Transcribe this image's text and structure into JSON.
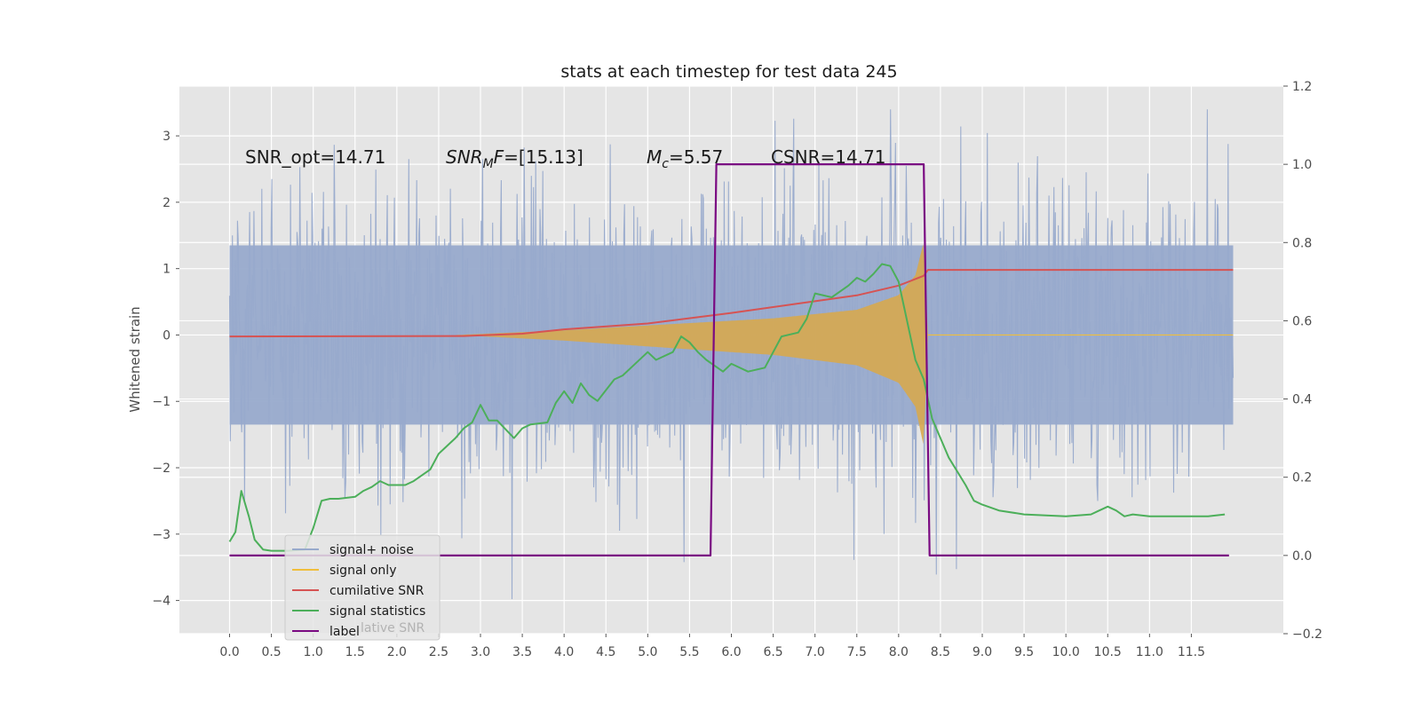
{
  "chart_data": {
    "type": "line",
    "title": "stats at each timestep for test data 245",
    "ylabel": "Whitened strain",
    "x_ticks": [
      "0.0",
      "0.5",
      "1.0",
      "1.5",
      "2.0",
      "2.5",
      "3.0",
      "3.5",
      "4.0",
      "4.5",
      "5.0",
      "5.5",
      "6.0",
      "6.5",
      "7.0",
      "7.5",
      "8.0",
      "8.5",
      "9.0",
      "9.5",
      "10.0",
      "10.5",
      "11.0",
      "11.5"
    ],
    "y_ticks_left": [
      3,
      2,
      1,
      0,
      -1,
      -2,
      -3,
      -4
    ],
    "y_ticks_right": [
      "1.2",
      "1.0",
      "0.8",
      "0.6",
      "0.4",
      "0.2",
      "0.0",
      "−0.2"
    ],
    "xlim": [
      -0.6,
      12.6
    ],
    "ylim_left": [
      -4.5,
      3.75
    ],
    "ylim_right": [
      -0.2,
      1.2
    ],
    "grid": true,
    "legend_position": "lower-left",
    "colors": {
      "background": "#e5e5e5",
      "noise": "#98aacc",
      "signal": "#f0be3c",
      "signal_fill": "#d7a84f",
      "cumsnr": "#d65353",
      "stats": "#4caf5a",
      "label": "#7a0a82"
    },
    "annotations": {
      "snr_opt": "SNR_opt=14.71",
      "snr_mf_main": "SNR",
      "snr_mf_sub": "M",
      "snr_mf_rest": "F=[15.13]",
      "mc_main": "M",
      "mc_sub": "c",
      "mc_rest": "=5.57",
      "csnr": "CSNR=14.71"
    },
    "legend": {
      "items": [
        "signal+ noise",
        "signal only",
        "cumilative SNR",
        "signal statistics",
        "label"
      ],
      "ghost_text": "lative SNR"
    },
    "series": [
      {
        "name": "signal+ noise",
        "axis": "left",
        "band": {
          "x_range": [
            0.0,
            12.0
          ],
          "core_amplitude": 1.0,
          "peak_range": [
            -4.1,
            3.4
          ]
        }
      },
      {
        "name": "signal only",
        "axis": "left",
        "x_range": [
          2.7,
          8.35
        ],
        "amplitude_envelope": [
          [
            2.7,
            0.0
          ],
          [
            4.0,
            0.07
          ],
          [
            5.5,
            0.18
          ],
          [
            6.5,
            0.25
          ],
          [
            7.5,
            0.38
          ],
          [
            8.0,
            0.6
          ],
          [
            8.2,
            0.9
          ],
          [
            8.3,
            1.4
          ],
          [
            8.35,
            0.0
          ]
        ]
      },
      {
        "name": "cumilative SNR",
        "axis": "right",
        "x": [
          0.0,
          2.8,
          3.5,
          4.0,
          5.0,
          6.0,
          7.0,
          7.5,
          8.0,
          8.3,
          8.35,
          12.0
        ],
        "values": [
          0.56,
          0.561,
          0.567,
          0.578,
          0.593,
          0.62,
          0.65,
          0.665,
          0.69,
          0.715,
          0.73,
          0.73
        ]
      },
      {
        "name": "signal statistics",
        "axis": "right",
        "x": [
          0.0,
          0.07,
          0.14,
          0.23,
          0.3,
          0.4,
          0.5,
          0.7,
          0.9,
          1.0,
          1.1,
          1.2,
          1.3,
          1.5,
          1.6,
          1.7,
          1.8,
          1.9,
          2.1,
          2.2,
          2.4,
          2.5,
          2.6,
          2.7,
          2.8,
          2.9,
          3.0,
          3.1,
          3.2,
          3.4,
          3.5,
          3.6,
          3.8,
          3.9,
          4.0,
          4.1,
          4.2,
          4.3,
          4.4,
          4.6,
          4.7,
          4.8,
          5.0,
          5.1,
          5.3,
          5.4,
          5.5,
          5.6,
          5.7,
          5.9,
          6.0,
          6.2,
          6.4,
          6.6,
          6.8,
          6.9,
          7.0,
          7.2,
          7.4,
          7.5,
          7.6,
          7.7,
          7.8,
          7.9,
          8.0,
          8.1,
          8.2,
          8.3,
          8.4,
          8.6,
          8.8,
          8.9,
          9.0,
          9.2,
          9.5,
          10.0,
          10.3,
          10.4,
          10.5,
          10.6,
          10.7,
          10.8,
          11.0,
          11.5,
          11.6,
          11.7,
          11.9
        ],
        "values": [
          0.035,
          0.06,
          0.165,
          0.1,
          0.04,
          0.015,
          0.012,
          0.012,
          0.015,
          0.07,
          0.14,
          0.145,
          0.145,
          0.15,
          0.165,
          0.175,
          0.19,
          0.18,
          0.18,
          0.19,
          0.22,
          0.26,
          0.28,
          0.3,
          0.325,
          0.34,
          0.385,
          0.345,
          0.345,
          0.3,
          0.325,
          0.335,
          0.34,
          0.39,
          0.42,
          0.39,
          0.44,
          0.41,
          0.395,
          0.45,
          0.46,
          0.48,
          0.52,
          0.5,
          0.52,
          0.56,
          0.545,
          0.52,
          0.5,
          0.47,
          0.49,
          0.47,
          0.48,
          0.56,
          0.57,
          0.605,
          0.67,
          0.66,
          0.69,
          0.71,
          0.7,
          0.72,
          0.745,
          0.74,
          0.7,
          0.6,
          0.5,
          0.45,
          0.35,
          0.25,
          0.18,
          0.14,
          0.13,
          0.115,
          0.105,
          0.1,
          0.105,
          0.115,
          0.125,
          0.115,
          0.1,
          0.105,
          0.1,
          0.1,
          0.1,
          0.1,
          0.105
        ]
      },
      {
        "name": "label",
        "axis": "right",
        "x": [
          0.0,
          5.75,
          5.82,
          8.3,
          8.37,
          11.95
        ],
        "values": [
          0.0,
          0.0,
          1.0,
          1.0,
          0.0,
          0.0
        ]
      }
    ]
  }
}
